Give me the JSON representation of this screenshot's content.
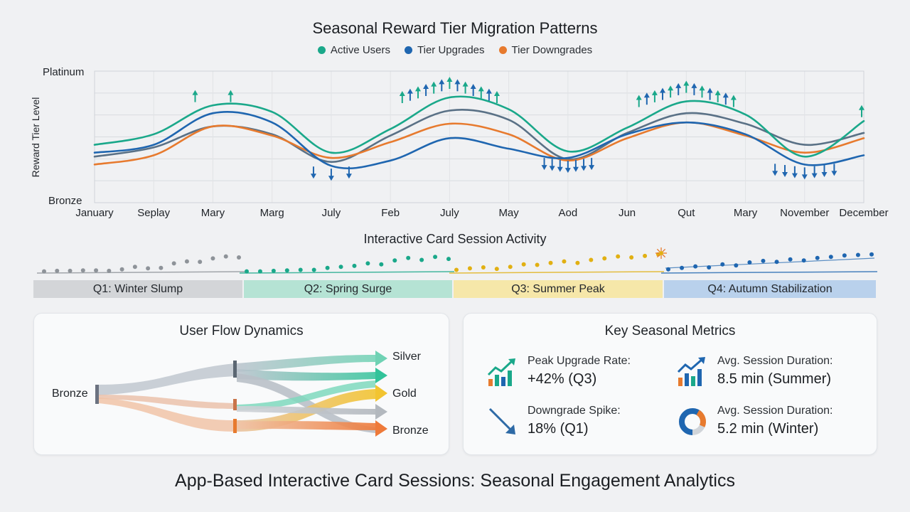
{
  "title": "Seasonal Reward Tier Migration Patterns",
  "colors": {
    "active": "#1aa88a",
    "upgrades": "#1f66b0",
    "downgrades": "#e77a2e",
    "slate": "#5a7186"
  },
  "chart_data": [
    {
      "type": "line",
      "title": "Seasonal Reward Tier Migration Patterns",
      "ylabel": "Reward Tier Level",
      "yticks": [
        "Platinum",
        "Bronze"
      ],
      "ylim": [
        0,
        10
      ],
      "grid": true,
      "legend_position": "top-center",
      "categories": [
        "January",
        "Seplay",
        "Mary",
        "Marg",
        "July",
        "Feb",
        "July",
        "May",
        "Aod",
        "Jun",
        "Qut",
        "Mary",
        "November",
        "December"
      ],
      "series": [
        {
          "name": "Active Users",
          "color": "#1aa88a",
          "values": [
            4.4,
            5.2,
            7.4,
            6.9,
            3.8,
            5.6,
            8.0,
            7.1,
            3.9,
            5.7,
            7.7,
            6.7,
            3.5,
            6.2
          ]
        },
        {
          "name": "Tier Upgrades",
          "color": "#1f66b0",
          "values": [
            3.8,
            4.4,
            6.8,
            6.1,
            2.8,
            3.2,
            4.9,
            4.1,
            3.4,
            5.2,
            6.1,
            5.2,
            2.9,
            3.6
          ]
        },
        {
          "name": "",
          "color": "#5a7186",
          "values": [
            3.5,
            4.2,
            5.8,
            5.2,
            3.1,
            5.1,
            7.0,
            6.3,
            3.3,
            5.3,
            6.8,
            6.0,
            4.4,
            5.3
          ]
        },
        {
          "name": "Tier Downgrades",
          "color": "#e77a2e",
          "values": [
            2.9,
            3.6,
            5.8,
            5.1,
            3.4,
            4.6,
            6.0,
            5.2,
            3.2,
            4.9,
            6.1,
            5.1,
            3.8,
            4.9
          ]
        }
      ]
    },
    {
      "type": "scatter",
      "title": "Interactive Card Session Activity",
      "categories": [
        "Q1: Winter Slump",
        "Q2: Spring Surge",
        "Q3: Summer Peak",
        "Q4: Autumn Stabilization"
      ],
      "series": [
        {
          "name": "Q1: Winter Slump",
          "color": "#8e9399",
          "values": [
            0.2,
            0.3,
            0.3,
            0.4,
            0.4,
            0.3,
            0.6,
            1.1,
            0.8,
            0.9,
            1.8,
            2.2,
            2.1,
            2.8,
            3.2,
            3.0
          ]
        },
        {
          "name": "Q2: Spring Surge",
          "color": "#1aa88a",
          "values": [
            0.2,
            0.2,
            0.3,
            0.4,
            0.5,
            0.5,
            0.9,
            1.1,
            1.3,
            1.8,
            1.6,
            2.4,
            2.9,
            2.5,
            3.1,
            2.7
          ]
        },
        {
          "name": "Q3: Summer Peak",
          "color": "#e1b012",
          "values": [
            0.5,
            0.8,
            1.0,
            0.7,
            1.1,
            1.6,
            1.5,
            1.9,
            2.2,
            1.9,
            2.5,
            2.8,
            3.2,
            3.0,
            3.3,
            3.6
          ]
        },
        {
          "name": "Q4: Autumn Stabilization",
          "color": "#1f66b0",
          "values": [
            0.6,
            0.9,
            1.2,
            1.0,
            1.6,
            1.4,
            2.0,
            2.3,
            2.1,
            2.6,
            2.4,
            2.9,
            3.1,
            3.4,
            3.5,
            3.6
          ]
        }
      ]
    }
  ],
  "session": {
    "title": "Interactive Card Session Activity"
  },
  "flow": {
    "title": "User Flow Dynamics",
    "source": "Bronze",
    "targets": [
      "Silver",
      "Gold",
      "Bronze"
    ]
  },
  "metrics": {
    "title": "Key Seasonal Metrics",
    "items": [
      {
        "label": "Peak Upgrade Rate:",
        "value": "+42% (Q3)",
        "icon": "bar-chart-up-icon"
      },
      {
        "label": "Avg. Session Duration:",
        "value": "8.5 min (Summer)",
        "icon": "line-chart-up-icon"
      },
      {
        "label": "Downgrade Spike:",
        "value": "18% (Q1)",
        "icon": "trend-down-arrow-icon"
      },
      {
        "label": "Avg. Session Duration:",
        "value": "5.2 min (Winter)",
        "icon": "donut-chart-icon"
      }
    ]
  },
  "footer": {
    "title": "App-Based Interactive Card Sessions: Seasonal Engagement Analytics"
  }
}
